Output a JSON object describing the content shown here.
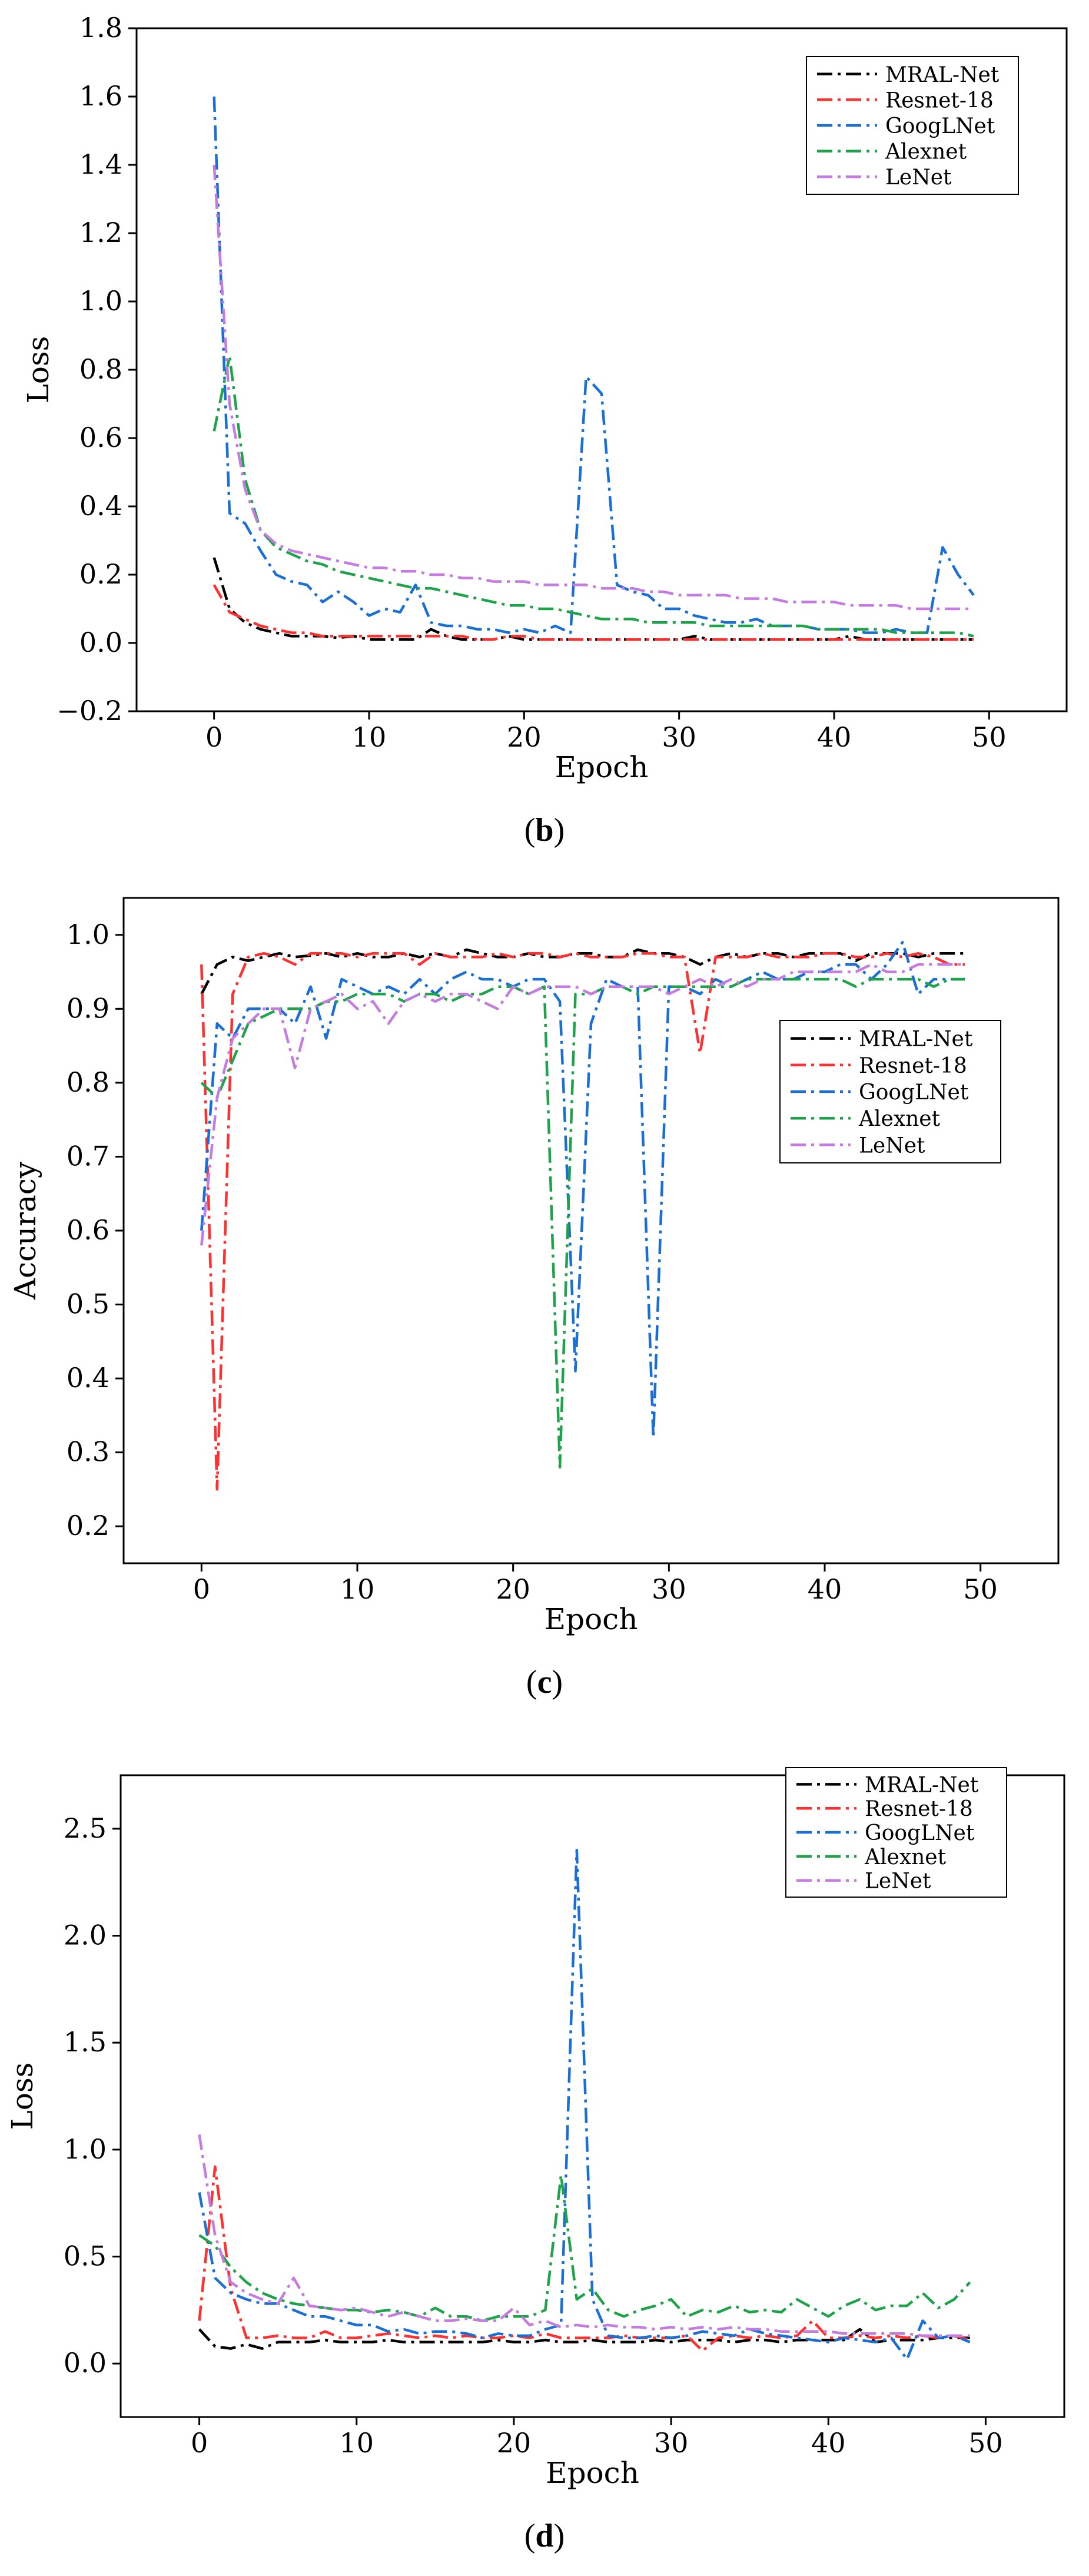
{
  "chart_data": [
    {
      "type": "line",
      "caption": {
        "open": "(",
        "letter": "b",
        "close": ")"
      },
      "title": "",
      "xlabel": "Epoch",
      "ylabel": "Loss",
      "xlim": [
        -5,
        55
      ],
      "ylim": [
        -0.2,
        1.8
      ],
      "xticks": [
        0,
        10,
        20,
        30,
        40,
        50
      ],
      "yticks": [
        -0.2,
        0.0,
        0.2,
        0.4,
        0.6,
        0.8,
        1.0,
        1.2,
        1.4,
        1.6,
        1.8
      ],
      "ytick_labels": [
        "−0.2",
        "0.0",
        "0.2",
        "0.4",
        "0.6",
        "0.8",
        "1.0",
        "1.2",
        "1.4",
        "1.6",
        "1.8"
      ],
      "grid": false,
      "legend_position": "top-right",
      "x": [
        0,
        1,
        2,
        3,
        4,
        5,
        6,
        7,
        8,
        9,
        10,
        11,
        12,
        13,
        14,
        15,
        16,
        17,
        18,
        19,
        20,
        21,
        22,
        23,
        24,
        25,
        26,
        27,
        28,
        29,
        30,
        31,
        32,
        33,
        34,
        35,
        36,
        37,
        38,
        39,
        40,
        41,
        42,
        43,
        44,
        45,
        46,
        47,
        48,
        49
      ],
      "series": [
        {
          "name": "MRAL-Net",
          "color": "#000000",
          "dash": "dashdot",
          "values": [
            0.25,
            0.1,
            0.06,
            0.04,
            0.03,
            0.02,
            0.02,
            0.02,
            0.015,
            0.02,
            0.01,
            0.01,
            0.01,
            0.01,
            0.04,
            0.02,
            0.01,
            0.01,
            0.01,
            0.02,
            0.01,
            0.01,
            0.01,
            0.01,
            0.01,
            0.01,
            0.01,
            0.01,
            0.01,
            0.01,
            0.01,
            0.02,
            0.01,
            0.01,
            0.01,
            0.01,
            0.01,
            0.01,
            0.01,
            0.01,
            0.01,
            0.02,
            0.01,
            0.01,
            0.01,
            0.01,
            0.01,
            0.01,
            0.01,
            0.01
          ]
        },
        {
          "name": "Resnet-18",
          "color": "#ff3030",
          "dash": "dashdot",
          "values": [
            0.17,
            0.09,
            0.07,
            0.05,
            0.04,
            0.03,
            0.03,
            0.02,
            0.02,
            0.02,
            0.02,
            0.02,
            0.02,
            0.02,
            0.02,
            0.02,
            0.02,
            0.01,
            0.01,
            0.02,
            0.02,
            0.01,
            0.01,
            0.01,
            0.01,
            0.01,
            0.01,
            0.01,
            0.01,
            0.01,
            0.01,
            0.01,
            0.01,
            0.01,
            0.01,
            0.01,
            0.01,
            0.01,
            0.01,
            0.01,
            0.01,
            0.01,
            0.01,
            0.01,
            0.01,
            0.01,
            0.01,
            0.01,
            0.01,
            0.01
          ]
        },
        {
          "name": "GoogLNet",
          "color": "#1a6fd6",
          "dash": "dashdot",
          "values": [
            1.6,
            0.38,
            0.35,
            0.27,
            0.2,
            0.18,
            0.17,
            0.12,
            0.15,
            0.12,
            0.08,
            0.1,
            0.09,
            0.17,
            0.06,
            0.05,
            0.05,
            0.04,
            0.04,
            0.03,
            0.04,
            0.03,
            0.05,
            0.03,
            0.78,
            0.73,
            0.17,
            0.15,
            0.14,
            0.1,
            0.1,
            0.08,
            0.07,
            0.06,
            0.06,
            0.07,
            0.05,
            0.05,
            0.05,
            0.04,
            0.04,
            0.04,
            0.03,
            0.03,
            0.04,
            0.03,
            0.03,
            0.28,
            0.2,
            0.14
          ]
        },
        {
          "name": "Alexnet",
          "color": "#1fa34a",
          "dash": "dashdot",
          "values": [
            0.62,
            0.84,
            0.48,
            0.33,
            0.28,
            0.26,
            0.24,
            0.23,
            0.21,
            0.2,
            0.19,
            0.18,
            0.17,
            0.16,
            0.16,
            0.15,
            0.14,
            0.13,
            0.12,
            0.11,
            0.11,
            0.1,
            0.1,
            0.09,
            0.08,
            0.07,
            0.07,
            0.07,
            0.06,
            0.06,
            0.06,
            0.06,
            0.05,
            0.05,
            0.05,
            0.05,
            0.05,
            0.05,
            0.05,
            0.04,
            0.04,
            0.04,
            0.04,
            0.04,
            0.03,
            0.03,
            0.03,
            0.03,
            0.03,
            0.02
          ]
        },
        {
          "name": "LeNet",
          "color": "#c47ce0",
          "dash": "dashdot",
          "values": [
            1.4,
            0.7,
            0.45,
            0.33,
            0.29,
            0.27,
            0.26,
            0.25,
            0.24,
            0.23,
            0.22,
            0.22,
            0.21,
            0.21,
            0.2,
            0.2,
            0.19,
            0.19,
            0.18,
            0.18,
            0.18,
            0.17,
            0.17,
            0.17,
            0.17,
            0.16,
            0.16,
            0.16,
            0.15,
            0.15,
            0.14,
            0.14,
            0.14,
            0.14,
            0.13,
            0.13,
            0.13,
            0.12,
            0.12,
            0.12,
            0.12,
            0.11,
            0.11,
            0.11,
            0.11,
            0.1,
            0.1,
            0.1,
            0.1,
            0.1
          ]
        }
      ]
    },
    {
      "type": "line",
      "caption": {
        "open": "(",
        "letter": "c",
        "close": ")"
      },
      "title": "",
      "xlabel": "Epoch",
      "ylabel": "Accuracy",
      "xlim": [
        -5,
        55
      ],
      "ylim": [
        0.15,
        1.05
      ],
      "xticks": [
        0,
        10,
        20,
        30,
        40,
        50
      ],
      "yticks": [
        0.2,
        0.3,
        0.4,
        0.5,
        0.6,
        0.7,
        0.8,
        0.9,
        1.0
      ],
      "ytick_labels": [
        "0.2",
        "0.3",
        "0.4",
        "0.5",
        "0.6",
        "0.7",
        "0.8",
        "0.9",
        "1.0"
      ],
      "grid": false,
      "legend_position": "right",
      "x": [
        0,
        1,
        2,
        3,
        4,
        5,
        6,
        7,
        8,
        9,
        10,
        11,
        12,
        13,
        14,
        15,
        16,
        17,
        18,
        19,
        20,
        21,
        22,
        23,
        24,
        25,
        26,
        27,
        28,
        29,
        30,
        31,
        32,
        33,
        34,
        35,
        36,
        37,
        38,
        39,
        40,
        41,
        42,
        43,
        44,
        45,
        46,
        47,
        48,
        49
      ],
      "series": [
        {
          "name": "MRAL-Net",
          "color": "#000000",
          "dash": "dashdot",
          "values": [
            0.92,
            0.96,
            0.97,
            0.965,
            0.97,
            0.975,
            0.97,
            0.972,
            0.975,
            0.97,
            0.975,
            0.97,
            0.97,
            0.975,
            0.97,
            0.975,
            0.97,
            0.98,
            0.975,
            0.97,
            0.97,
            0.975,
            0.97,
            0.97,
            0.975,
            0.975,
            0.97,
            0.97,
            0.98,
            0.975,
            0.975,
            0.97,
            0.96,
            0.97,
            0.975,
            0.97,
            0.975,
            0.975,
            0.97,
            0.975,
            0.975,
            0.975,
            0.965,
            0.975,
            0.975,
            0.975,
            0.97,
            0.975,
            0.975,
            0.975
          ]
        },
        {
          "name": "Resnet-18",
          "color": "#ff3030",
          "dash": "dashdot",
          "values": [
            0.96,
            0.25,
            0.92,
            0.97,
            0.975,
            0.97,
            0.96,
            0.975,
            0.975,
            0.975,
            0.97,
            0.975,
            0.975,
            0.975,
            0.96,
            0.975,
            0.97,
            0.97,
            0.97,
            0.975,
            0.97,
            0.975,
            0.975,
            0.97,
            0.975,
            0.97,
            0.97,
            0.97,
            0.975,
            0.975,
            0.97,
            0.97,
            0.84,
            0.97,
            0.97,
            0.97,
            0.975,
            0.97,
            0.97,
            0.97,
            0.975,
            0.975,
            0.97,
            0.97,
            0.975,
            0.97,
            0.975,
            0.97,
            0.96,
            0.96
          ]
        },
        {
          "name": "GoogLNet",
          "color": "#1a6fd6",
          "dash": "dashdot",
          "values": [
            0.6,
            0.88,
            0.86,
            0.9,
            0.9,
            0.9,
            0.88,
            0.93,
            0.86,
            0.94,
            0.93,
            0.92,
            0.93,
            0.92,
            0.94,
            0.92,
            0.94,
            0.95,
            0.94,
            0.94,
            0.93,
            0.94,
            0.94,
            0.91,
            0.41,
            0.88,
            0.94,
            0.93,
            0.93,
            0.32,
            0.93,
            0.93,
            0.92,
            0.94,
            0.93,
            0.94,
            0.95,
            0.94,
            0.94,
            0.95,
            0.95,
            0.96,
            0.96,
            0.94,
            0.96,
            0.99,
            0.92,
            0.94,
            0.94,
            0.94
          ]
        },
        {
          "name": "Alexnet",
          "color": "#1fa34a",
          "dash": "dashdot",
          "values": [
            0.8,
            0.78,
            0.83,
            0.88,
            0.89,
            0.9,
            0.9,
            0.9,
            0.91,
            0.91,
            0.92,
            0.92,
            0.92,
            0.91,
            0.92,
            0.92,
            0.91,
            0.92,
            0.92,
            0.93,
            0.93,
            0.92,
            0.93,
            0.28,
            0.92,
            0.92,
            0.93,
            0.93,
            0.92,
            0.93,
            0.93,
            0.93,
            0.93,
            0.93,
            0.93,
            0.94,
            0.94,
            0.94,
            0.94,
            0.94,
            0.94,
            0.94,
            0.93,
            0.94,
            0.94,
            0.94,
            0.94,
            0.93,
            0.94,
            0.94
          ]
        },
        {
          "name": "LeNet",
          "color": "#c47ce0",
          "dash": "dashdot",
          "values": [
            0.58,
            0.78,
            0.86,
            0.88,
            0.9,
            0.9,
            0.82,
            0.9,
            0.91,
            0.92,
            0.9,
            0.91,
            0.88,
            0.91,
            0.92,
            0.91,
            0.92,
            0.92,
            0.91,
            0.9,
            0.93,
            0.92,
            0.93,
            0.93,
            0.93,
            0.92,
            0.93,
            0.93,
            0.93,
            0.93,
            0.92,
            0.93,
            0.94,
            0.93,
            0.94,
            0.93,
            0.94,
            0.94,
            0.95,
            0.95,
            0.95,
            0.95,
            0.95,
            0.96,
            0.95,
            0.95,
            0.96,
            0.96,
            0.96,
            0.96
          ]
        }
      ]
    },
    {
      "type": "line",
      "caption": {
        "open": "(",
        "letter": "d",
        "close": ")"
      },
      "title": "",
      "xlabel": "Epoch",
      "ylabel": "Loss",
      "xlim": [
        -5,
        55
      ],
      "ylim": [
        -0.25,
        2.75
      ],
      "xticks": [
        0,
        10,
        20,
        30,
        40,
        50
      ],
      "yticks": [
        0.0,
        0.5,
        1.0,
        1.5,
        2.0,
        2.5
      ],
      "ytick_labels": [
        "0.0",
        "0.5",
        "1.0",
        "1.5",
        "2.0",
        "2.5"
      ],
      "grid": false,
      "legend_position": "top-right",
      "x": [
        0,
        1,
        2,
        3,
        4,
        5,
        6,
        7,
        8,
        9,
        10,
        11,
        12,
        13,
        14,
        15,
        16,
        17,
        18,
        19,
        20,
        21,
        22,
        23,
        24,
        25,
        26,
        27,
        28,
        29,
        30,
        31,
        32,
        33,
        34,
        35,
        36,
        37,
        38,
        39,
        40,
        41,
        42,
        43,
        44,
        45,
        46,
        47,
        48,
        49
      ],
      "series": [
        {
          "name": "MRAL-Net",
          "color": "#000000",
          "dash": "dashdot",
          "values": [
            0.16,
            0.08,
            0.07,
            0.09,
            0.07,
            0.1,
            0.1,
            0.1,
            0.11,
            0.1,
            0.1,
            0.1,
            0.11,
            0.1,
            0.1,
            0.1,
            0.1,
            0.1,
            0.1,
            0.11,
            0.1,
            0.1,
            0.11,
            0.1,
            0.1,
            0.11,
            0.1,
            0.1,
            0.1,
            0.11,
            0.1,
            0.11,
            0.11,
            0.11,
            0.1,
            0.11,
            0.11,
            0.1,
            0.11,
            0.11,
            0.11,
            0.11,
            0.16,
            0.1,
            0.11,
            0.11,
            0.11,
            0.12,
            0.12,
            0.12
          ]
        },
        {
          "name": "Resnet-18",
          "color": "#ff3030",
          "dash": "dashdot",
          "values": [
            0.2,
            0.92,
            0.35,
            0.12,
            0.12,
            0.13,
            0.12,
            0.12,
            0.15,
            0.12,
            0.12,
            0.13,
            0.14,
            0.13,
            0.12,
            0.13,
            0.12,
            0.13,
            0.12,
            0.12,
            0.13,
            0.12,
            0.14,
            0.12,
            0.12,
            0.12,
            0.12,
            0.13,
            0.12,
            0.12,
            0.12,
            0.13,
            0.06,
            0.12,
            0.13,
            0.12,
            0.13,
            0.12,
            0.13,
            0.2,
            0.12,
            0.12,
            0.13,
            0.12,
            0.13,
            0.12,
            0.13,
            0.12,
            0.13,
            0.11
          ]
        },
        {
          "name": "GoogLNet",
          "color": "#1a6fd6",
          "dash": "dashdot",
          "values": [
            0.8,
            0.4,
            0.33,
            0.3,
            0.28,
            0.28,
            0.25,
            0.22,
            0.22,
            0.2,
            0.18,
            0.18,
            0.15,
            0.16,
            0.14,
            0.15,
            0.15,
            0.14,
            0.12,
            0.14,
            0.13,
            0.13,
            0.16,
            0.18,
            2.4,
            0.3,
            0.13,
            0.12,
            0.12,
            0.13,
            0.12,
            0.13,
            0.15,
            0.14,
            0.13,
            0.16,
            0.14,
            0.13,
            0.12,
            0.11,
            0.1,
            0.12,
            0.11,
            0.1,
            0.12,
            0.02,
            0.2,
            0.12,
            0.13,
            0.1
          ]
        },
        {
          "name": "Alexnet",
          "color": "#1fa34a",
          "dash": "dashdot",
          "values": [
            0.6,
            0.55,
            0.45,
            0.38,
            0.33,
            0.3,
            0.28,
            0.27,
            0.26,
            0.25,
            0.25,
            0.24,
            0.25,
            0.24,
            0.22,
            0.26,
            0.22,
            0.22,
            0.2,
            0.22,
            0.22,
            0.22,
            0.25,
            0.88,
            0.3,
            0.35,
            0.25,
            0.22,
            0.25,
            0.27,
            0.3,
            0.22,
            0.25,
            0.24,
            0.27,
            0.24,
            0.25,
            0.24,
            0.3,
            0.26,
            0.22,
            0.27,
            0.3,
            0.25,
            0.27,
            0.27,
            0.33,
            0.26,
            0.3,
            0.38
          ]
        },
        {
          "name": "LeNet",
          "color": "#c47ce0",
          "dash": "dashdot",
          "values": [
            1.07,
            0.6,
            0.38,
            0.33,
            0.3,
            0.28,
            0.4,
            0.27,
            0.26,
            0.25,
            0.26,
            0.24,
            0.22,
            0.24,
            0.22,
            0.2,
            0.2,
            0.21,
            0.2,
            0.2,
            0.26,
            0.18,
            0.2,
            0.17,
            0.18,
            0.17,
            0.18,
            0.17,
            0.17,
            0.16,
            0.17,
            0.16,
            0.17,
            0.16,
            0.17,
            0.16,
            0.16,
            0.15,
            0.15,
            0.15,
            0.15,
            0.14,
            0.14,
            0.14,
            0.14,
            0.14,
            0.13,
            0.13,
            0.13,
            0.13
          ]
        }
      ]
    }
  ]
}
